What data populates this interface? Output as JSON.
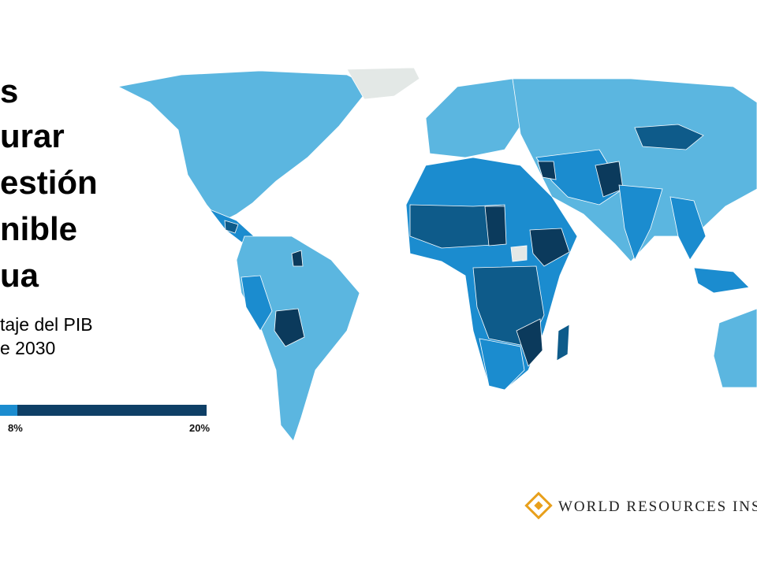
{
  "header": {
    "title_lines": [
      "s",
      "urar",
      "estión",
      "nible",
      "ua"
    ],
    "subtitle_lines": [
      "taje del PIB",
      "e 2030"
    ]
  },
  "legend": {
    "labels": [
      "8%",
      "20%"
    ]
  },
  "footer": {
    "logo_text": "WORLD RESOURCES INS"
  }
}
